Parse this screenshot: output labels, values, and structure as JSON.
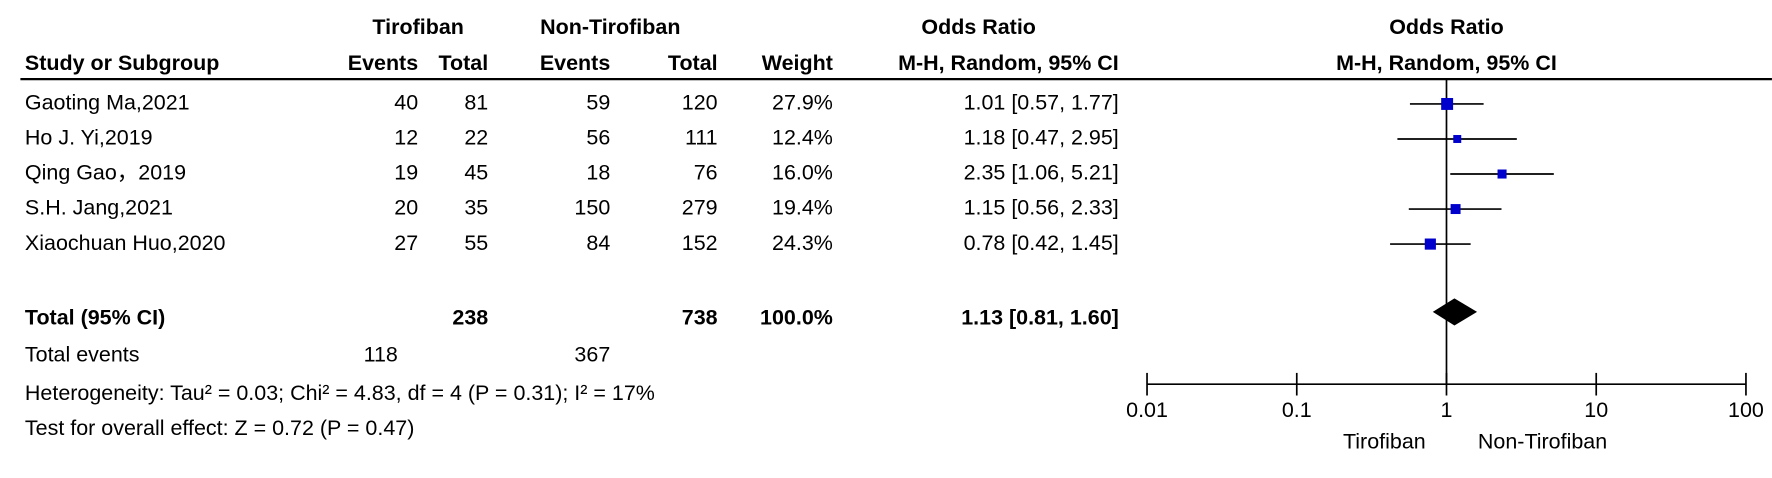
{
  "chart_data": {
    "type": "forest",
    "group_headers": [
      "Tirofiban",
      "Non-Tirofiban",
      "Odds Ratio",
      "Odds Ratio"
    ],
    "columns": [
      "Study or Subgroup",
      "Events",
      "Total",
      "Events",
      "Total",
      "Weight",
      "M-H, Random, 95% CI",
      "M-H, Random, 95% CI"
    ],
    "studies": [
      {
        "name": "Gaoting Ma,2021",
        "events1": 40,
        "total1": 81,
        "events2": 59,
        "total2": 120,
        "weight": 27.9,
        "weight_label": "27.9%",
        "or": 1.01,
        "lo": 0.57,
        "hi": 1.77,
        "ci_label": "1.01 [0.57, 1.77]"
      },
      {
        "name": "Ho J. Yi,2019",
        "events1": 12,
        "total1": 22,
        "events2": 56,
        "total2": 111,
        "weight": 12.4,
        "weight_label": "12.4%",
        "or": 1.18,
        "lo": 0.47,
        "hi": 2.95,
        "ci_label": "1.18 [0.47, 2.95]"
      },
      {
        "name": "Qing Gao，2019",
        "events1": 19,
        "total1": 45,
        "events2": 18,
        "total2": 76,
        "weight": 16,
        "weight_label": "16.0%",
        "or": 2.35,
        "lo": 1.06,
        "hi": 5.21,
        "ci_label": "2.35 [1.06, 5.21]"
      },
      {
        "name": "S.H. Jang,2021",
        "events1": 20,
        "total1": 35,
        "events2": 150,
        "total2": 279,
        "weight": 19.4,
        "weight_label": "19.4%",
        "or": 1.15,
        "lo": 0.56,
        "hi": 2.33,
        "ci_label": "1.15 [0.56, 2.33]"
      },
      {
        "name": "Xiaochuan Huo,2020",
        "events1": 27,
        "total1": 55,
        "events2": 84,
        "total2": 152,
        "weight": 24.3,
        "weight_label": "24.3%",
        "or": 0.78,
        "lo": 0.42,
        "hi": 1.45,
        "ci_label": "0.78 [0.42, 1.45]"
      }
    ],
    "total": {
      "name": "Total (95% CI)",
      "total1": 238,
      "total2": 738,
      "weight": 100,
      "weight_label": "100.0%",
      "or": 1.13,
      "lo": 0.81,
      "hi": 1.6,
      "ci_label": "1.13 [0.81, 1.60]"
    },
    "total_events": {
      "name": "Total events",
      "events1": 118,
      "events2": 367
    },
    "heterogeneity": "Heterogeneity: Tau² = 0.03; Chi² = 4.83, df = 4 (P = 0.31); I² = 17%",
    "overall_effect": "Test for overall effect: Z = 0.72 (P = 0.47)",
    "xscale": "log",
    "xlim": [
      0.01,
      100
    ],
    "xticks": [
      0.01,
      0.1,
      1,
      10,
      100
    ],
    "favours": [
      "Tirofiban",
      "Non-Tirofiban"
    ],
    "square_color": "#0000cc",
    "diamond_color": "#000000",
    "line_color": "#000000"
  }
}
